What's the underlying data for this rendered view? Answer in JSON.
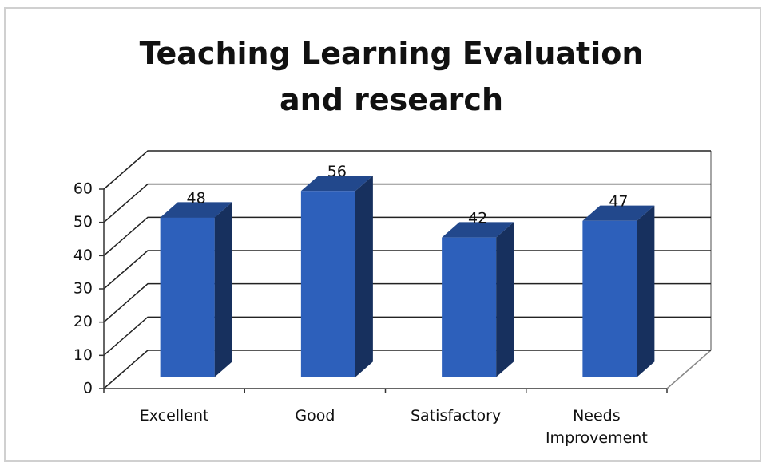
{
  "chart_data": {
    "type": "bar",
    "title": "Teaching Learning Evaluation and research",
    "categories": [
      "Excellent",
      "Good",
      "Satisfactory",
      "Needs Improvement"
    ],
    "values": [
      48,
      56,
      42,
      47
    ],
    "color": "#2d60bb",
    "ylim": [
      0,
      60
    ],
    "yticks": [
      0,
      10,
      20,
      30,
      40,
      50,
      60
    ],
    "grid": true
  }
}
